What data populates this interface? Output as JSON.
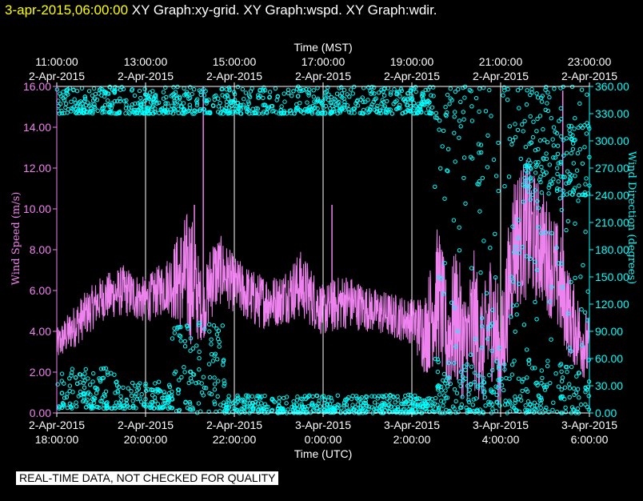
{
  "header": {
    "timestamp": "3-apr-2015,06:00:00",
    "titles": "XY Graph:xy-grid.  XY Graph:wspd.  XY Graph:wdir."
  },
  "disclaimer": "REAL-TIME DATA, NOT CHECKED FOR QUALITY",
  "colors": {
    "speed": "#ee82ee",
    "direction": "#00ffff",
    "axis": "#ffffff",
    "grid": "#ffffff"
  },
  "chart_data": {
    "type": "line",
    "top_axis": {
      "title": "Time (MST)",
      "ticks": [
        {
          "time": "11:00:00",
          "date": "2-Apr-2015"
        },
        {
          "time": "13:00:00",
          "date": "2-Apr-2015"
        },
        {
          "time": "15:00:00",
          "date": "2-Apr-2015"
        },
        {
          "time": "17:00:00",
          "date": "2-Apr-2015"
        },
        {
          "time": "19:00:00",
          "date": "2-Apr-2015"
        },
        {
          "time": "21:00:00",
          "date": "2-Apr-2015"
        },
        {
          "time": "23:00:00",
          "date": "2-Apr-2015"
        }
      ]
    },
    "bottom_axis": {
      "title": "Time (UTC)",
      "ticks": [
        {
          "date": "2-Apr-2015",
          "time": "18:00:00"
        },
        {
          "date": "2-Apr-2015",
          "time": "20:00:00"
        },
        {
          "date": "2-Apr-2015",
          "time": "22:00:00"
        },
        {
          "date": "3-Apr-2015",
          "time": "0:00:00"
        },
        {
          "date": "3-Apr-2015",
          "time": "2:00:00"
        },
        {
          "date": "3-Apr-2015",
          "time": "4:00:00"
        },
        {
          "date": "3-Apr-2015",
          "time": "6:00:00"
        }
      ],
      "range_utc": [
        "2-Apr-2015 18:00:00",
        "3-Apr-2015 06:00:00"
      ]
    },
    "left_axis": {
      "title": "Wind Speed (m/s)",
      "ylim": [
        0,
        16
      ],
      "ticks": [
        "0.00",
        "2.00",
        "4.00",
        "6.00",
        "8.00",
        "10.00",
        "12.00",
        "14.00",
        "16.00"
      ]
    },
    "right_axis": {
      "title": "Wind Direction (degrees)",
      "ylim": [
        0,
        360
      ],
      "ticks": [
        "0.00",
        "30.00",
        "60.00",
        "90.00",
        "120.00",
        "150.00",
        "180.00",
        "210.00",
        "240.00",
        "270.00",
        "300.00",
        "330.00",
        "360.00"
      ]
    },
    "grid": "vertical lines at each 2-hour tick",
    "series": [
      {
        "name": "Wind Speed (m/s)",
        "style": "line",
        "color": "#ee82ee",
        "x_hours_utc_since_18": [
          0,
          0.5,
          1,
          1.5,
          2,
          2.5,
          3,
          3.3,
          3.5,
          3.7,
          4,
          4.5,
          5,
          5.5,
          6,
          6.5,
          7,
          7.5,
          8,
          8.3,
          8.6,
          8.8,
          9,
          9.2,
          9.4,
          9.6,
          9.8,
          10,
          10.3,
          10.6,
          11,
          11.3,
          11.6,
          12
        ],
        "mean": [
          3.3,
          4.5,
          5.6,
          6.0,
          5.5,
          6.3,
          6.8,
          5.0,
          6.7,
          7.0,
          6.3,
          5.5,
          5.5,
          6.3,
          5.0,
          5.5,
          5.1,
          4.8,
          4.5,
          3.9,
          6.0,
          3.5,
          4.8,
          3.2,
          4.5,
          3.0,
          5.0,
          2.6,
          8.5,
          9.0,
          8.0,
          6.5,
          4.5,
          3.0
        ],
        "amplitude": [
          0.6,
          0.8,
          0.8,
          0.9,
          0.8,
          1.0,
          2.5,
          1.0,
          1.5,
          1.2,
          1.0,
          1.0,
          0.9,
          1.2,
          0.9,
          1.0,
          0.8,
          0.8,
          0.8,
          1.5,
          2.5,
          2.0,
          2.5,
          2.0,
          2.5,
          2.0,
          2.5,
          2.0,
          2.5,
          2.5,
          2.0,
          2.0,
          1.5,
          1.2
        ],
        "peaks": [
          {
            "x": 3.3,
            "y": 16.0
          },
          {
            "x": 3.1,
            "y": 10.2
          },
          {
            "x": 6.2,
            "y": 10.2
          },
          {
            "x": 11.4,
            "y": 15.8
          }
        ]
      },
      {
        "name": "Wind Direction (degrees)",
        "style": "circles",
        "color": "#00ffff",
        "clusters": [
          {
            "x_from": 0,
            "x_to": 1.3,
            "low": 5,
            "high": 50
          },
          {
            "x_from": 1.3,
            "x_to": 2.6,
            "low": 5,
            "high": 35
          },
          {
            "x_from": 2.6,
            "x_to": 3.8,
            "low": 0,
            "high": 100
          },
          {
            "x_from": 3.8,
            "x_to": 8.5,
            "low": 0,
            "high": 20
          },
          {
            "x_from": 8.5,
            "x_to": 12,
            "low": 0,
            "high": 360
          },
          {
            "x_from": 10.5,
            "x_to": 12,
            "low": 240,
            "high": 330
          },
          {
            "x_from": 0,
            "x_to": 8.5,
            "low": 330,
            "high": 360
          }
        ]
      }
    ]
  }
}
